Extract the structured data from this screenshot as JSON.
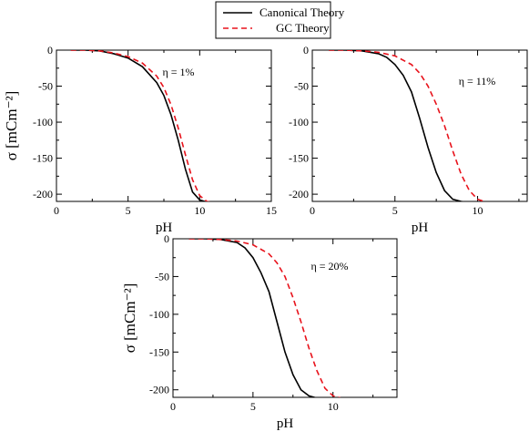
{
  "legend": {
    "entries": [
      {
        "label": "Canonical Theory",
        "color": "#000000",
        "dash": "solid"
      },
      {
        "label": "GC Theory",
        "color": "#e8121b",
        "dash": "dashed"
      }
    ],
    "placement": "top-center"
  },
  "chart_data": [
    {
      "type": "line",
      "xlabel": "pH",
      "ylabel": "σ [mCm⁻²]",
      "xlim": [
        0,
        15
      ],
      "ylim": [
        -210,
        0
      ],
      "xticks": [
        0,
        5,
        10,
        15
      ],
      "yticks": [
        0,
        -50,
        -100,
        -150,
        -200
      ],
      "annotation": "η = 1%",
      "series": [
        {
          "name": "Canonical Theory",
          "x": [
            1,
            2,
            3,
            4,
            5,
            6,
            7,
            7.5,
            8,
            8.5,
            9,
            9.5,
            10,
            10.5,
            11,
            12
          ],
          "y": [
            0,
            0,
            -1,
            -5,
            -11,
            -23,
            -45,
            -63,
            -90,
            -125,
            -165,
            -197,
            -208,
            -211,
            -212,
            -212
          ]
        },
        {
          "name": "GC Theory",
          "x": [
            1,
            2,
            3,
            4,
            5,
            6,
            7,
            7.5,
            8,
            8.5,
            9,
            9.5,
            10,
            10.5,
            11,
            12
          ],
          "y": [
            0,
            0,
            -1,
            -4,
            -9,
            -18,
            -36,
            -52,
            -76,
            -108,
            -145,
            -180,
            -202,
            -210,
            -212,
            -212
          ]
        }
      ],
      "grid": false
    },
    {
      "type": "line",
      "xlabel": "pH",
      "ylabel": "",
      "xlim": [
        0,
        13
      ],
      "ylim": [
        -210,
        0
      ],
      "xticks": [
        0,
        5,
        10
      ],
      "yticks": [
        0,
        -50,
        -100,
        -150,
        -200
      ],
      "annotation": "η = 11%",
      "series": [
        {
          "name": "Canonical Theory",
          "x": [
            1,
            2,
            3,
            4,
            4.5,
            5,
            5.5,
            6,
            6.5,
            7,
            7.5,
            8,
            8.5,
            9,
            9.5,
            10,
            11,
            13
          ],
          "y": [
            0,
            0,
            -1,
            -5,
            -10,
            -20,
            -35,
            -58,
            -95,
            -135,
            -170,
            -195,
            -207,
            -210,
            -212,
            -212,
            -212,
            -212
          ]
        },
        {
          "name": "GC Theory",
          "x": [
            1,
            2,
            3,
            4,
            5,
            6,
            6.5,
            7,
            7.5,
            8,
            8.5,
            9,
            9.5,
            10,
            10.5,
            11,
            12,
            13
          ],
          "y": [
            0,
            0,
            -1,
            -3,
            -8,
            -20,
            -32,
            -50,
            -75,
            -105,
            -140,
            -172,
            -195,
            -207,
            -211,
            -212,
            -212,
            -212
          ]
        }
      ],
      "grid": false
    },
    {
      "type": "line",
      "xlabel": "pH",
      "ylabel": "σ [mCm⁻²]",
      "xlim": [
        0,
        14
      ],
      "ylim": [
        -210,
        0
      ],
      "xticks": [
        0,
        5,
        10
      ],
      "yticks": [
        0,
        -50,
        -100,
        -150,
        -200
      ],
      "annotation": "η = 20%",
      "series": [
        {
          "name": "Canonical Theory",
          "x": [
            1,
            2,
            3,
            4,
            4.5,
            5,
            5.5,
            6,
            6.5,
            7,
            7.5,
            8,
            8.5,
            9,
            9.5,
            10,
            11,
            14
          ],
          "y": [
            0,
            0,
            -1,
            -5,
            -12,
            -25,
            -45,
            -70,
            -110,
            -150,
            -180,
            -200,
            -208,
            -211,
            -212,
            -212,
            -212,
            -212
          ]
        },
        {
          "name": "GC Theory",
          "x": [
            1,
            2,
            3,
            4,
            5,
            6,
            6.5,
            7,
            7.5,
            8,
            8.5,
            9,
            9.5,
            10,
            10.5,
            11,
            12,
            14
          ],
          "y": [
            0,
            0,
            -1,
            -3,
            -8,
            -20,
            -32,
            -50,
            -78,
            -110,
            -145,
            -175,
            -198,
            -208,
            -211,
            -212,
            -212,
            -212
          ]
        }
      ],
      "grid": false
    }
  ]
}
